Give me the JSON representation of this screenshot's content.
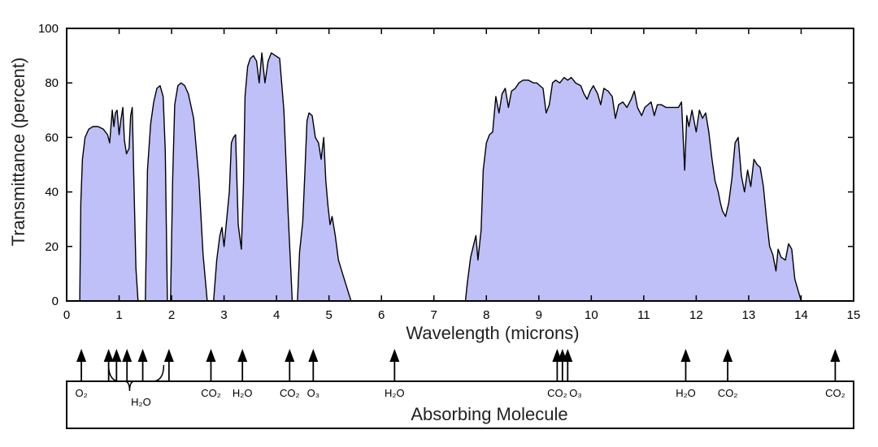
{
  "chart_data": {
    "type": "area",
    "xlabel": "Wavelength (microns)",
    "ylabel": "Transmittance (percent)",
    "xlim": [
      0,
      15
    ],
    "ylim": [
      0,
      100
    ],
    "xticks": [
      0,
      1,
      2,
      3,
      4,
      5,
      6,
      7,
      8,
      9,
      10,
      11,
      12,
      13,
      14,
      15
    ],
    "yticks": [
      0,
      20,
      40,
      60,
      80,
      100
    ],
    "fill_color": "#bfc0f7",
    "line_color": "#000000",
    "bands": [
      [
        [
          0.25,
          0
        ],
        [
          0.27,
          36
        ],
        [
          0.3,
          52
        ],
        [
          0.35,
          60
        ],
        [
          0.42,
          63
        ],
        [
          0.5,
          64
        ],
        [
          0.6,
          64
        ],
        [
          0.7,
          63
        ],
        [
          0.78,
          61
        ],
        [
          0.82,
          58
        ],
        [
          0.84,
          63
        ],
        [
          0.87,
          70
        ],
        [
          0.9,
          64
        ],
        [
          0.93,
          69
        ],
        [
          0.96,
          70
        ],
        [
          1.0,
          61
        ],
        [
          1.03,
          66
        ],
        [
          1.07,
          71
        ],
        [
          1.1,
          59
        ],
        [
          1.14,
          54
        ],
        [
          1.19,
          56
        ],
        [
          1.22,
          68
        ],
        [
          1.25,
          71
        ],
        [
          1.28,
          45
        ],
        [
          1.32,
          12
        ],
        [
          1.36,
          0
        ]
      ],
      [
        [
          1.5,
          0
        ],
        [
          1.54,
          48
        ],
        [
          1.6,
          65
        ],
        [
          1.66,
          73
        ],
        [
          1.72,
          78
        ],
        [
          1.78,
          79
        ],
        [
          1.84,
          75
        ],
        [
          1.88,
          55
        ],
        [
          1.92,
          0
        ]
      ],
      [
        [
          1.98,
          0
        ],
        [
          2.02,
          45
        ],
        [
          2.06,
          72
        ],
        [
          2.12,
          79
        ],
        [
          2.18,
          80
        ],
        [
          2.25,
          79
        ],
        [
          2.32,
          76
        ],
        [
          2.42,
          67
        ],
        [
          2.52,
          45
        ],
        [
          2.6,
          17
        ],
        [
          2.68,
          0
        ]
      ],
      [
        [
          2.8,
          0
        ],
        [
          2.86,
          15
        ],
        [
          2.92,
          24
        ],
        [
          2.96,
          27
        ],
        [
          3.0,
          20
        ],
        [
          3.04,
          28
        ],
        [
          3.1,
          40
        ],
        [
          3.14,
          58
        ],
        [
          3.18,
          60
        ],
        [
          3.22,
          61
        ],
        [
          3.27,
          28
        ],
        [
          3.33,
          19
        ],
        [
          3.37,
          43
        ],
        [
          3.4,
          75
        ],
        [
          3.45,
          86
        ],
        [
          3.5,
          89
        ],
        [
          3.56,
          90
        ],
        [
          3.62,
          88
        ],
        [
          3.67,
          80
        ],
        [
          3.72,
          91
        ],
        [
          3.78,
          80
        ],
        [
          3.84,
          88
        ],
        [
          3.9,
          91
        ],
        [
          3.98,
          90
        ],
        [
          4.06,
          89
        ],
        [
          4.14,
          70
        ],
        [
          4.22,
          33
        ],
        [
          4.3,
          0
        ]
      ],
      [
        [
          4.4,
          0
        ],
        [
          4.44,
          18
        ],
        [
          4.5,
          29
        ],
        [
          4.54,
          47
        ],
        [
          4.58,
          66
        ],
        [
          4.62,
          69
        ],
        [
          4.68,
          68
        ],
        [
          4.74,
          60
        ],
        [
          4.8,
          58
        ],
        [
          4.85,
          52
        ],
        [
          4.9,
          60
        ],
        [
          4.94,
          44
        ],
        [
          4.98,
          35
        ],
        [
          5.02,
          28
        ],
        [
          5.06,
          31
        ],
        [
          5.12,
          24
        ],
        [
          5.18,
          15
        ],
        [
          5.26,
          10
        ],
        [
          5.34,
          5
        ],
        [
          5.42,
          0
        ]
      ],
      [
        [
          7.6,
          0
        ],
        [
          7.64,
          7
        ],
        [
          7.7,
          16
        ],
        [
          7.75,
          20
        ],
        [
          7.8,
          24
        ],
        [
          7.84,
          15
        ],
        [
          7.9,
          26
        ],
        [
          7.94,
          48
        ],
        [
          8.0,
          58
        ],
        [
          8.06,
          61
        ],
        [
          8.12,
          62
        ],
        [
          8.18,
          75
        ],
        [
          8.24,
          69
        ],
        [
          8.3,
          76
        ],
        [
          8.36,
          78
        ],
        [
          8.42,
          71
        ],
        [
          8.48,
          77
        ],
        [
          8.55,
          78
        ],
        [
          8.62,
          80
        ],
        [
          8.7,
          81
        ],
        [
          8.8,
          81
        ],
        [
          8.9,
          80
        ],
        [
          8.96,
          80
        ],
        [
          9.02,
          79
        ],
        [
          9.08,
          78
        ],
        [
          9.14,
          69
        ],
        [
          9.2,
          72
        ],
        [
          9.26,
          80
        ],
        [
          9.32,
          81
        ],
        [
          9.4,
          80
        ],
        [
          9.48,
          82
        ],
        [
          9.55,
          81
        ],
        [
          9.62,
          82
        ],
        [
          9.7,
          80
        ],
        [
          9.8,
          79
        ],
        [
          9.86,
          76
        ],
        [
          9.92,
          74
        ],
        [
          9.98,
          77
        ],
        [
          10.04,
          79
        ],
        [
          10.12,
          76
        ],
        [
          10.18,
          72
        ],
        [
          10.24,
          78
        ],
        [
          10.32,
          77
        ],
        [
          10.4,
          75
        ],
        [
          10.46,
          67
        ],
        [
          10.52,
          72
        ],
        [
          10.6,
          73
        ],
        [
          10.68,
          71
        ],
        [
          10.76,
          74
        ],
        [
          10.82,
          77
        ],
        [
          10.88,
          71
        ],
        [
          10.96,
          68
        ],
        [
          11.02,
          71
        ],
        [
          11.08,
          72
        ],
        [
          11.14,
          73
        ],
        [
          11.2,
          68
        ],
        [
          11.26,
          72
        ],
        [
          11.34,
          72
        ],
        [
          11.42,
          71
        ],
        [
          11.5,
          71
        ],
        [
          11.58,
          71
        ],
        [
          11.66,
          71
        ],
        [
          11.72,
          73
        ],
        [
          11.78,
          48
        ],
        [
          11.82,
          68
        ],
        [
          11.86,
          64
        ],
        [
          11.92,
          70
        ],
        [
          12.0,
          62
        ],
        [
          12.06,
          70
        ],
        [
          12.12,
          67
        ],
        [
          12.18,
          69
        ],
        [
          12.24,
          62
        ],
        [
          12.3,
          52
        ],
        [
          12.36,
          44
        ],
        [
          12.42,
          40
        ],
        [
          12.46,
          36
        ],
        [
          12.5,
          33
        ],
        [
          12.56,
          31
        ],
        [
          12.62,
          36
        ],
        [
          12.68,
          45
        ],
        [
          12.74,
          58
        ],
        [
          12.8,
          60
        ],
        [
          12.86,
          46
        ],
        [
          12.92,
          40
        ],
        [
          12.98,
          48
        ],
        [
          13.04,
          42
        ],
        [
          13.1,
          52
        ],
        [
          13.16,
          50
        ],
        [
          13.22,
          49
        ],
        [
          13.28,
          42
        ],
        [
          13.34,
          30
        ],
        [
          13.4,
          20
        ],
        [
          13.46,
          17
        ],
        [
          13.52,
          11
        ],
        [
          13.56,
          19
        ],
        [
          13.62,
          16
        ],
        [
          13.7,
          15
        ],
        [
          13.76,
          21
        ],
        [
          13.82,
          19
        ],
        [
          13.88,
          8
        ],
        [
          13.94,
          4
        ],
        [
          14.0,
          0
        ]
      ]
    ],
    "absorbing_molecule_title": "Absorbing Molecule",
    "molecules": [
      {
        "label": "O₂",
        "x": 0.28
      },
      {
        "label": "H₂O",
        "x": 1.2,
        "bracket": [
          0.8,
          1.85
        ]
      },
      {
        "label": "CO₂",
        "x": 2.75
      },
      {
        "label": "H₂O",
        "x": 3.35
      },
      {
        "label": "CO₂",
        "x": 4.25
      },
      {
        "label": "O₃",
        "x": 4.7
      },
      {
        "label": "H₂O",
        "x": 6.25
      },
      {
        "label": "CO₂",
        "x": 9.35
      },
      {
        "label": "O₃",
        "x": 9.7
      },
      {
        "label": "H₂O",
        "x": 11.8
      },
      {
        "label": "CO₂",
        "x": 12.6
      },
      {
        "label": "CO₂",
        "x": 14.65
      }
    ],
    "arrows_x": [
      0.28,
      0.8,
      0.95,
      1.15,
      1.45,
      1.95,
      2.75,
      3.35,
      4.25,
      4.7,
      6.25,
      9.35,
      9.45,
      9.55,
      11.8,
      12.6,
      14.65
    ]
  }
}
